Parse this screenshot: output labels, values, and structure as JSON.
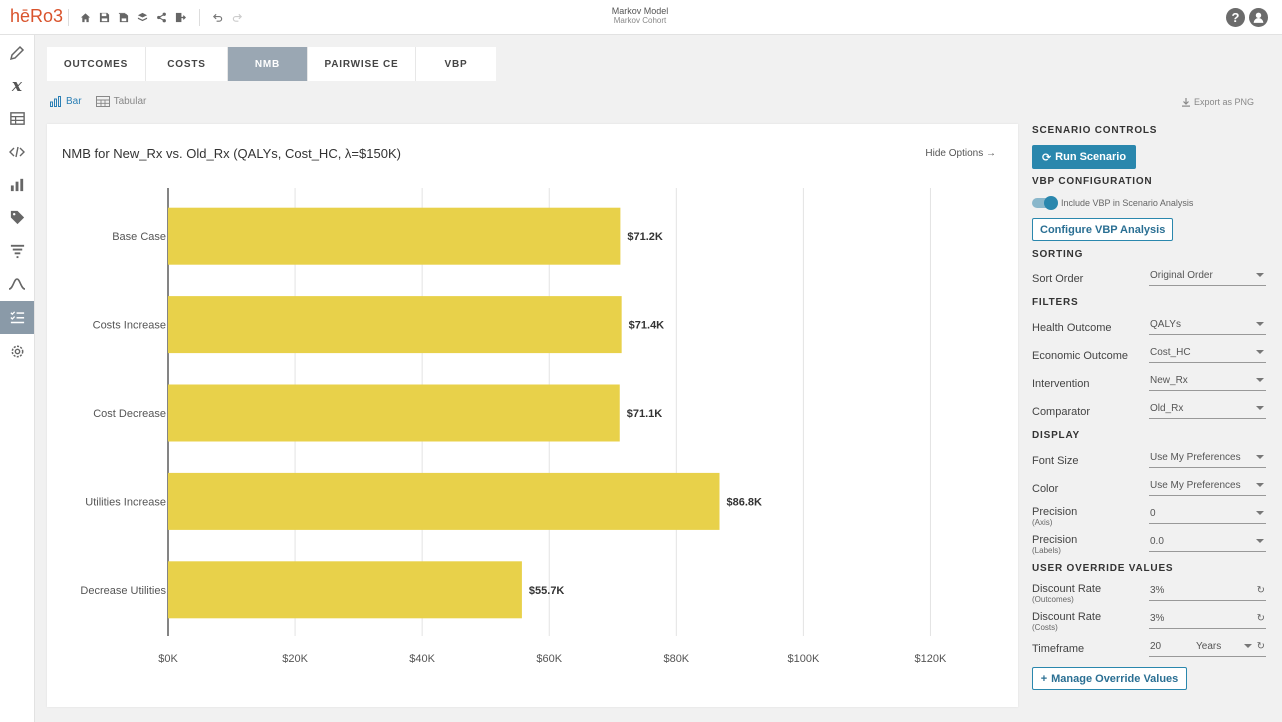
{
  "app": {
    "logo": "hēRo3",
    "title": "Markov Model",
    "subtitle": "Markov Cohort",
    "help_icon": "?",
    "user_icon": "user"
  },
  "toolbar_icons": [
    "home-icon",
    "save-icon",
    "save-as-icon",
    "layers-icon",
    "share-icon",
    "export-icon"
  ],
  "tabs": [
    {
      "label": "OUTCOMES",
      "active": false
    },
    {
      "label": "COSTS",
      "active": false
    },
    {
      "label": "NMB",
      "active": true
    },
    {
      "label": "PAIRWISE CE",
      "active": false
    },
    {
      "label": "VBP",
      "active": false
    }
  ],
  "view": {
    "bar_label": "Bar",
    "tabular_label": "Tabular",
    "export_label": "Export as PNG"
  },
  "chart_header": {
    "hide_options": "Hide Options"
  },
  "chart_data": {
    "type": "bar",
    "orientation": "horizontal",
    "title": "NMB for New_Rx vs. Old_Rx (QALYs, Cost_HC, λ=$150K)",
    "categories": [
      "Base Case",
      "Costs Increase",
      "Cost Decrease",
      "Utilities Increase",
      "Decrease Utilities"
    ],
    "values": [
      71200,
      71400,
      71100,
      86800,
      55700
    ],
    "data_labels": [
      "$71.2K",
      "$71.4K",
      "$71.1K",
      "$86.8K",
      "$55.7K"
    ],
    "xticks": [
      0,
      20000,
      40000,
      60000,
      80000,
      100000,
      120000
    ],
    "xtick_labels": [
      "$0K",
      "$20K",
      "$40K",
      "$60K",
      "$80K",
      "$100K",
      "$120K"
    ],
    "xlim": [
      0,
      130000
    ],
    "grid": true,
    "bar_color": "#e8d14a"
  },
  "panel": {
    "scenario_controls": "SCENARIO CONTROLS",
    "run_scenario": "Run Scenario",
    "vbp_configuration": "VBP CONFIGURATION",
    "include_vbp": "Include VBP in Scenario Analysis",
    "configure_vbp": "Configure VBP Analysis",
    "sorting": "SORTING",
    "sort_order_label": "Sort Order",
    "sort_order_value": "Original Order",
    "filters": "FILTERS",
    "health_outcome_label": "Health Outcome",
    "health_outcome_value": "QALYs",
    "economic_outcome_label": "Economic Outcome",
    "economic_outcome_value": "Cost_HC",
    "intervention_label": "Intervention",
    "intervention_value": "New_Rx",
    "comparator_label": "Comparator",
    "comparator_value": "Old_Rx",
    "display": "DISPLAY",
    "font_size_label": "Font Size",
    "font_size_value": "Use My Preferences",
    "color_label": "Color",
    "color_value": "Use My Preferences",
    "precision_axis_label": "Precision",
    "precision_axis_sub": "(Axis)",
    "precision_axis_value": "0",
    "precision_labels_label": "Precision",
    "precision_labels_sub": "(Labels)",
    "precision_labels_value": "0.0",
    "user_override": "USER OVERRIDE VALUES",
    "discount_outcomes_label": "Discount Rate",
    "discount_outcomes_sub": "(Outcomes)",
    "discount_outcomes_value": "3%",
    "discount_costs_label": "Discount Rate",
    "discount_costs_sub": "(Costs)",
    "discount_costs_value": "3%",
    "timeframe_label": "Timeframe",
    "timeframe_value": "20",
    "timeframe_unit": "Years",
    "manage_override": "Manage Override Values"
  },
  "colors": {
    "accent": "#2a87ad",
    "active_tab": "#9aa7b3",
    "bar": "#e8d14a"
  }
}
